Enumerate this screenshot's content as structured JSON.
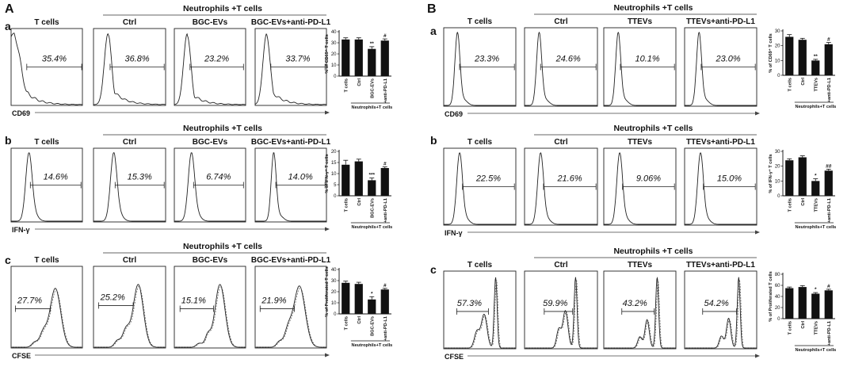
{
  "figure": {
    "panels": [
      {
        "label": "A",
        "group_label": "Neutrophils +T cells",
        "sample_titles": [
          "T cells",
          "Ctrl",
          "BGC-EVs",
          "BGC-EVs+anti-PD-L1"
        ],
        "rows": [
          {
            "label": "a",
            "marker": "CD69",
            "percentages": [
              "35.4%",
              "36.8%",
              "23.2%",
              "33.7%"
            ]
          },
          {
            "label": "b",
            "marker": "IFN-γ",
            "percentages": [
              "14.6%",
              "15.3%",
              "6.74%",
              "14.0%"
            ]
          },
          {
            "label": "c",
            "marker": "CFSE",
            "percentages": [
              "27.7%",
              "25.2%",
              "15.1%",
              "21.9%"
            ]
          }
        ]
      },
      {
        "label": "B",
        "group_label": "Neutrophils +T cells",
        "sample_titles": [
          "T cells",
          "Ctrl",
          "TTEVs",
          "TTEVs+anti-PD-L1"
        ],
        "rows": [
          {
            "label": "a",
            "marker": "CD69",
            "percentages": [
              "23.3%",
              "24.6%",
              "10.1%",
              "23.0%"
            ]
          },
          {
            "label": "b",
            "marker": "IFN-γ",
            "percentages": [
              "22.5%",
              "21.6%",
              "9.06%",
              "15.0%"
            ]
          },
          {
            "label": "c",
            "marker": "CFSE",
            "percentages": [
              "57.3%",
              "59.9%",
              "43.2%",
              "54.2%"
            ]
          }
        ]
      }
    ]
  },
  "chart_data": [
    {
      "id": "A-a",
      "type": "bar",
      "ylabel": "% of CD69⁺ T cells",
      "ylim": [
        0,
        40
      ],
      "yticks": [
        0,
        10,
        20,
        30,
        40
      ],
      "categories": [
        "T cells",
        "Ctrl",
        "BGC-EVs",
        "+anti-PD-L1"
      ],
      "values": [
        33,
        33,
        24.5,
        32
      ],
      "errors": [
        1.5,
        1.5,
        2,
        1.5
      ],
      "significance": [
        "",
        "",
        "**",
        "#"
      ],
      "bracket_label": "Neutrophils+T cells"
    },
    {
      "id": "A-b",
      "type": "bar",
      "ylabel": "% of IFN-γ⁺ T cells",
      "ylim": [
        0,
        20
      ],
      "yticks": [
        0,
        5,
        10,
        15,
        20
      ],
      "categories": [
        "T cells",
        "Ctrl",
        "BGC-EVs",
        "+anti-PD-L1"
      ],
      "values": [
        14,
        15.5,
        7,
        12.5
      ],
      "errors": [
        2,
        1,
        1,
        0.5
      ],
      "significance": [
        "",
        "",
        "***",
        "#"
      ],
      "bracket_label": "Neutrophils+T cells"
    },
    {
      "id": "A-c",
      "type": "bar",
      "ylabel": "% of Proliferated T cells",
      "ylim": [
        0,
        40
      ],
      "yticks": [
        0,
        10,
        20,
        30,
        40
      ],
      "categories": [
        "T cells",
        "Ctrl",
        "BGC-EVs",
        "+anti-PD-L1"
      ],
      "values": [
        28,
        27,
        13,
        22
      ],
      "errors": [
        1.5,
        1.5,
        2.5,
        1
      ],
      "significance": [
        "",
        "",
        "*",
        "#"
      ],
      "bracket_label": "Neutrophils+T cells"
    },
    {
      "id": "B-a",
      "type": "bar",
      "ylabel": "% of CD69⁺ T cells",
      "ylim": [
        0,
        30
      ],
      "yticks": [
        0,
        10,
        20,
        30
      ],
      "categories": [
        "T cells",
        "Ctrl",
        "TTEVs",
        "+anti-PD-L1"
      ],
      "values": [
        26,
        24,
        10,
        21
      ],
      "errors": [
        1.5,
        1,
        0.8,
        1.2
      ],
      "significance": [
        "",
        "",
        "**",
        "#"
      ],
      "bracket_label": "Neutrophils+T cells"
    },
    {
      "id": "B-b",
      "type": "bar",
      "ylabel": "% of IFN-γ⁺ T cells",
      "ylim": [
        0,
        30
      ],
      "yticks": [
        0,
        10,
        20,
        30
      ],
      "categories": [
        "T cells",
        "Ctrl",
        "TTEVs",
        "+anti-PD-L1"
      ],
      "values": [
        24,
        26,
        10,
        17
      ],
      "errors": [
        1,
        1,
        1.5,
        1
      ],
      "significance": [
        "",
        "",
        "*",
        "##"
      ],
      "bracket_label": "Neutrophils+T cells"
    },
    {
      "id": "B-c",
      "type": "bar",
      "ylabel": "% of Proliferated T cells",
      "ylim": [
        0,
        80
      ],
      "yticks": [
        0,
        20,
        40,
        60,
        80
      ],
      "categories": [
        "T cells",
        "Ctrl",
        "TTEVs",
        "+anti-PD-L1"
      ],
      "values": [
        55,
        57,
        45,
        51
      ],
      "errors": [
        2,
        2.5,
        2,
        2
      ],
      "significance": [
        "",
        "",
        "*",
        "#"
      ],
      "bracket_label": "Neutrophils+T cells"
    }
  ],
  "histograms": [
    {
      "id": "A-a-1",
      "type": "cd69",
      "peak": 0.03,
      "pw": 0.1,
      "tail": 0.55,
      "gate": [
        0.22,
        0.99
      ]
    },
    {
      "id": "A-a-2",
      "type": "cd69",
      "peak": 0.2,
      "pw": 0.05,
      "tail": 0.3,
      "gate": [
        0.23,
        0.98
      ]
    },
    {
      "id": "A-a-3",
      "type": "cd69",
      "peak": 0.18,
      "pw": 0.05,
      "tail": 0.22,
      "gate": [
        0.22,
        0.97
      ]
    },
    {
      "id": "A-a-4",
      "type": "cd69",
      "peak": 0.16,
      "pw": 0.05,
      "tail": 0.28,
      "gate": [
        0.22,
        0.98
      ]
    },
    {
      "id": "A-b-1",
      "type": "single",
      "peak": 0.25,
      "pw": 0.045,
      "gate": [
        0.27,
        0.98
      ]
    },
    {
      "id": "A-b-2",
      "type": "single",
      "peak": 0.28,
      "pw": 0.045,
      "gate": [
        0.3,
        0.98
      ]
    },
    {
      "id": "A-b-3",
      "type": "single",
      "peak": 0.24,
      "pw": 0.045,
      "gate": [
        0.27,
        0.97
      ]
    },
    {
      "id": "A-b-4",
      "type": "single",
      "peak": 0.26,
      "pw": 0.035,
      "gate": [
        0.29,
        0.98
      ]
    },
    {
      "id": "A-c-1",
      "type": "cfse",
      "peaks": [
        [
          0.62,
          0.075,
          0.75
        ],
        [
          0.45,
          0.05,
          0.18
        ],
        [
          0.33,
          0.04,
          0.06
        ]
      ],
      "gate": [
        0.06,
        0.55
      ],
      "gy": 0.52
    },
    {
      "id": "A-c-2",
      "type": "cfse",
      "peaks": [
        [
          0.62,
          0.07,
          0.8
        ],
        [
          0.45,
          0.05,
          0.22
        ],
        [
          0.33,
          0.04,
          0.08
        ]
      ],
      "gate": [
        0.07,
        0.55
      ],
      "gy": 0.48
    },
    {
      "id": "A-c-3",
      "type": "cfse",
      "peaks": [
        [
          0.64,
          0.07,
          0.8
        ],
        [
          0.47,
          0.04,
          0.15
        ],
        [
          0.35,
          0.04,
          0.05
        ]
      ],
      "gate": [
        0.08,
        0.55
      ],
      "gy": 0.52
    },
    {
      "id": "A-c-4",
      "type": "cfse",
      "peaks": [
        [
          0.62,
          0.08,
          0.78
        ],
        [
          0.46,
          0.05,
          0.2
        ],
        [
          0.34,
          0.04,
          0.07
        ]
      ],
      "gate": [
        0.07,
        0.55
      ],
      "gy": 0.52
    },
    {
      "id": "B-a-1",
      "type": "single",
      "peak": 0.19,
      "pw": 0.035,
      "gate": [
        0.22,
        0.98
      ]
    },
    {
      "id": "B-a-2",
      "type": "single",
      "peak": 0.2,
      "pw": 0.035,
      "gate": [
        0.22,
        0.98
      ]
    },
    {
      "id": "B-a-3",
      "type": "single",
      "peak": 0.2,
      "pw": 0.035,
      "gate": [
        0.23,
        0.98
      ]
    },
    {
      "id": "B-a-4",
      "type": "single",
      "peak": 0.2,
      "pw": 0.035,
      "gate": [
        0.23,
        0.98
      ]
    },
    {
      "id": "B-b-1",
      "type": "single",
      "peak": 0.22,
      "pw": 0.04,
      "gate": [
        0.26,
        0.98
      ]
    },
    {
      "id": "B-b-2",
      "type": "single",
      "peak": 0.22,
      "pw": 0.04,
      "gate": [
        0.26,
        0.98
      ]
    },
    {
      "id": "B-b-3",
      "type": "single",
      "peak": 0.22,
      "pw": 0.04,
      "gate": [
        0.26,
        0.98
      ]
    },
    {
      "id": "B-b-4",
      "type": "single",
      "peak": 0.22,
      "pw": 0.04,
      "gate": [
        0.26,
        0.98
      ]
    },
    {
      "id": "B-c-1",
      "type": "cfse",
      "peaks": [
        [
          0.72,
          0.02,
          0.95
        ],
        [
          0.56,
          0.04,
          0.45
        ],
        [
          0.46,
          0.035,
          0.22
        ]
      ],
      "gate": [
        0.18,
        0.62
      ],
      "gy": 0.52
    },
    {
      "id": "B-c-2",
      "type": "cfse",
      "peaks": [
        [
          0.7,
          0.02,
          0.95
        ],
        [
          0.56,
          0.035,
          0.5
        ],
        [
          0.47,
          0.03,
          0.25
        ]
      ],
      "gate": [
        0.27,
        0.66
      ],
      "gy": 0.52
    },
    {
      "id": "B-c-3",
      "type": "cfse",
      "peaks": [
        [
          0.74,
          0.02,
          0.95
        ],
        [
          0.6,
          0.03,
          0.38
        ],
        [
          0.5,
          0.03,
          0.15
        ]
      ],
      "gate": [
        0.25,
        0.7
      ],
      "gy": 0.52
    },
    {
      "id": "B-c-4",
      "type": "cfse",
      "peaks": [
        [
          0.75,
          0.02,
          0.95
        ],
        [
          0.61,
          0.03,
          0.4
        ],
        [
          0.51,
          0.03,
          0.16
        ]
      ],
      "gate": [
        0.25,
        0.72
      ],
      "gy": 0.52
    }
  ]
}
